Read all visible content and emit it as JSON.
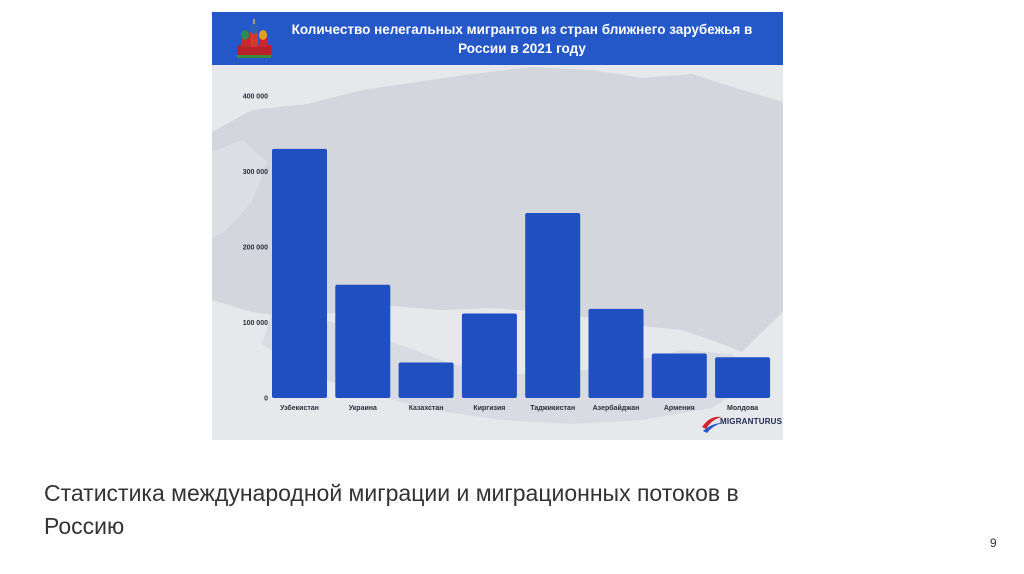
{
  "slide": {
    "caption": "Статистика международной миграции и миграционных потоков в Россию",
    "page_number": "9"
  },
  "brand": {
    "name": "MIGRANTURUS"
  },
  "colors": {
    "bar": "#1f4fc1",
    "header": "#2458c8",
    "map": "#d4d7de"
  },
  "chart_data": {
    "type": "bar",
    "title": "Количество нелегальных мигрантов из стран ближнего зарубежья в России в 2021 году",
    "categories": [
      "Узбекистан",
      "Украина",
      "Казахстан",
      "Киргизия",
      "Таджикистан",
      "Азербайджан",
      "Армения",
      "Молдова"
    ],
    "values": [
      330000,
      150000,
      47000,
      112000,
      245000,
      118000,
      59000,
      54000
    ],
    "ylim": [
      0,
      400000
    ],
    "yticks": [
      0,
      100000,
      200000,
      300000,
      400000
    ],
    "ytick_labels": [
      "0",
      "100 000",
      "200 000",
      "300 000",
      "400 000"
    ],
    "xlabel": "",
    "ylabel": "",
    "grid": false
  }
}
